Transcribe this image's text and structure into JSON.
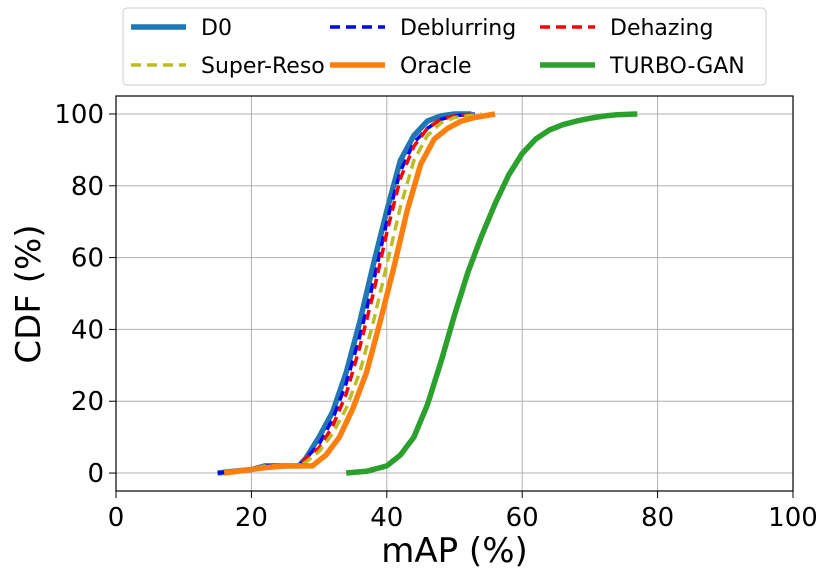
{
  "chart_data": {
    "type": "line",
    "title": "",
    "xlabel": "mAP (%)",
    "ylabel": "CDF (%)",
    "xlim": [
      0,
      100
    ],
    "ylim": [
      -5,
      105
    ],
    "xticks": [
      0,
      20,
      40,
      60,
      80,
      100
    ],
    "yticks": [
      0,
      20,
      40,
      60,
      80,
      100
    ],
    "grid": true,
    "legend": {
      "placement": "top-outside",
      "columns": 3
    },
    "series": [
      {
        "name": "D0",
        "color": "#1f77b4",
        "style": "solid",
        "x": [
          15,
          20,
          22,
          25,
          27,
          28,
          30,
          32,
          34,
          36,
          38,
          40,
          42,
          44,
          46,
          48,
          50,
          52.5
        ],
        "y": [
          0,
          1,
          2,
          2,
          2,
          4,
          10,
          17,
          28,
          42,
          58,
          73,
          87,
          94,
          98,
          99.5,
          100,
          100
        ]
      },
      {
        "name": "Deblurring",
        "color": "#0000ff",
        "style": "dashed",
        "x": [
          15,
          20,
          22,
          25,
          27,
          28,
          30,
          32,
          34,
          36,
          38,
          40,
          42,
          44,
          46,
          48,
          50,
          53
        ],
        "y": [
          0,
          1,
          2,
          2,
          2,
          4,
          8,
          15,
          25,
          38,
          53,
          70,
          84,
          92,
          96,
          98.5,
          99.5,
          100
        ]
      },
      {
        "name": "Dehazing",
        "color": "#ff0000",
        "style": "dashed",
        "x": [
          16,
          20,
          22,
          25,
          27,
          28,
          30,
          32,
          34,
          36,
          38,
          40,
          42,
          44,
          46,
          48,
          50,
          53
        ],
        "y": [
          0,
          1,
          2,
          2,
          2,
          4,
          7,
          13,
          22,
          35,
          50,
          67,
          82,
          91,
          96,
          98.5,
          99.5,
          100
        ]
      },
      {
        "name": "Super-Reso",
        "color": "#bcbd22",
        "style": "dashed",
        "x": [
          16,
          20,
          22,
          25,
          27,
          28,
          30,
          32,
          34,
          36,
          38,
          40,
          42,
          44,
          46,
          48,
          50,
          54
        ],
        "y": [
          0,
          1,
          2,
          2,
          2,
          3,
          6,
          11,
          18,
          28,
          42,
          58,
          74,
          87,
          94,
          97.5,
          99,
          100
        ]
      },
      {
        "name": "Oracle",
        "color": "#ff7f0e",
        "style": "solid",
        "x": [
          16,
          20,
          22,
          25,
          27,
          29,
          31,
          33,
          35,
          37,
          39,
          41,
          43,
          45,
          47,
          49,
          51,
          53,
          56
        ],
        "y": [
          0,
          1,
          1.5,
          2,
          2,
          2,
          5,
          10,
          18,
          28,
          42,
          57,
          73,
          86,
          93,
          96,
          98,
          99,
          100
        ]
      },
      {
        "name": "TURBO-GAN",
        "color": "#2ca02c",
        "style": "solid",
        "x": [
          34,
          37,
          40,
          42,
          44,
          46,
          48,
          50,
          52,
          54,
          56,
          58,
          60,
          62,
          64,
          66,
          68,
          70,
          72,
          74,
          77
        ],
        "y": [
          0,
          0.5,
          2,
          5,
          10,
          19,
          31,
          44,
          56,
          66,
          75,
          83,
          89,
          93,
          95.5,
          97,
          98,
          98.8,
          99.4,
          99.8,
          100
        ]
      }
    ]
  }
}
